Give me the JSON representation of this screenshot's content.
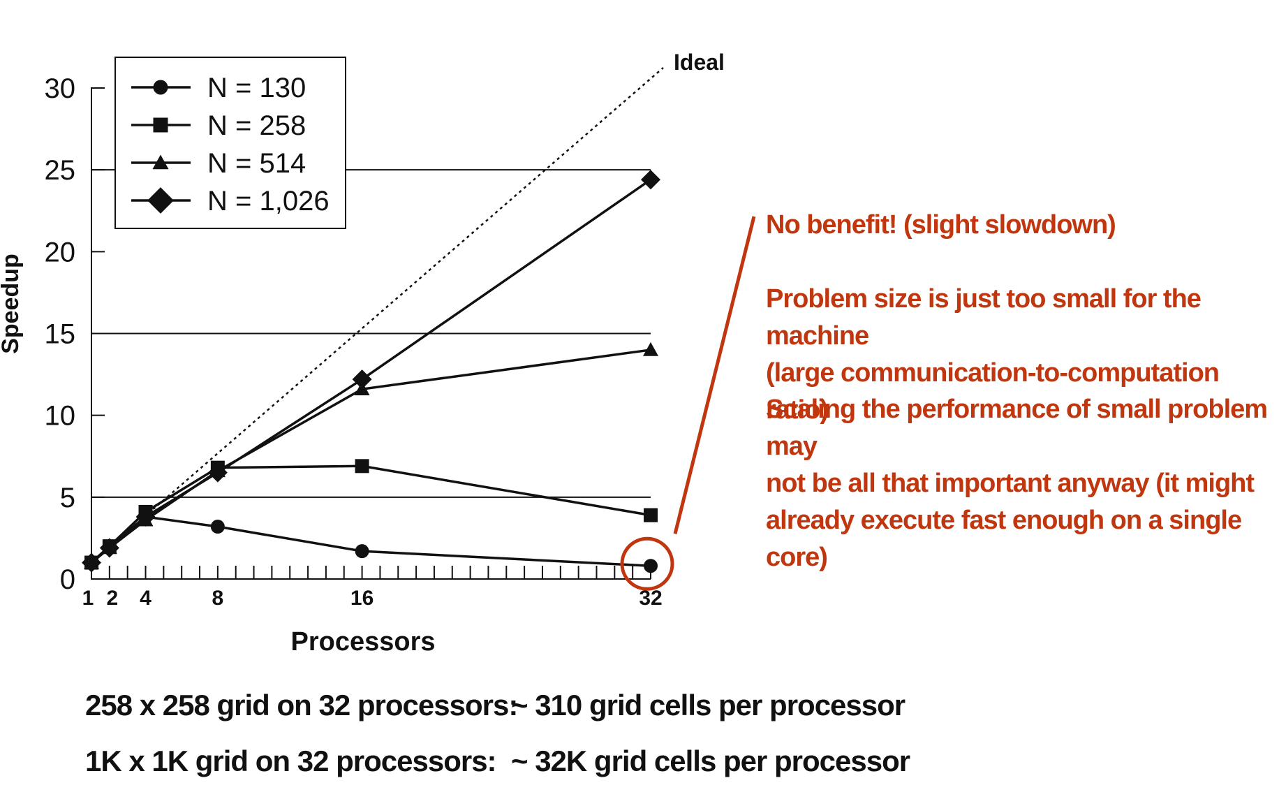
{
  "chart_data": {
    "type": "line",
    "xlabel": "Processors",
    "ylabel": "Speedup",
    "x": [
      1,
      2,
      4,
      8,
      16,
      32
    ],
    "x_tick_labels": [
      "1",
      "2",
      "4",
      "8",
      "16",
      "32"
    ],
    "y_tick_labels": [
      "0",
      "5",
      "10",
      "15",
      "20",
      "25",
      "30"
    ],
    "xlim": [
      1,
      32
    ],
    "ylim": [
      0,
      30
    ],
    "grid": "horizontal lines at 5, 15 and 25",
    "legend_position": "top-left",
    "series": [
      {
        "name": "N = 130",
        "marker": "circle",
        "values": [
          1,
          2,
          3.8,
          3.2,
          1.7,
          0.8
        ]
      },
      {
        "name": "N = 258",
        "marker": "square",
        "values": [
          1,
          2,
          4.1,
          6.8,
          6.9,
          3.9
        ]
      },
      {
        "name": "N = 514",
        "marker": "triangle",
        "values": [
          1,
          1.9,
          3.6,
          6.6,
          11.6,
          14.0
        ]
      },
      {
        "name": "N = 1,026",
        "marker": "diamond",
        "values": [
          1,
          1.9,
          3.8,
          6.5,
          12.2,
          24.4
        ]
      }
    ],
    "ideal_line": {
      "label": "Ideal",
      "from": [
        1,
        1
      ],
      "to": [
        32,
        32
      ]
    },
    "highlight": {
      "series": "N = 130",
      "x": 32,
      "color": "#c0360f"
    }
  },
  "annotations": {
    "no_benefit": "No benefit! (slight slowdown)",
    "problem_size_line1": "Problem size is just too small for the machine",
    "problem_size_line2": "(large communication-to-computation ratio)",
    "scaling_line1": "Scaling the performance of small problem may",
    "scaling_line2": "not be all that important anyway (it might",
    "scaling_line3": "already execute fast enough on a single core)"
  },
  "footer": {
    "row1_left": "258 x 258 grid on 32 processors:",
    "row1_right": "~ 310 grid cells per processor",
    "row2_left": "1K x 1K grid on 32 processors:",
    "row2_right": "~ 32K grid cells per processor"
  },
  "colors": {
    "accent": "#c0360f",
    "ink": "#111111"
  }
}
